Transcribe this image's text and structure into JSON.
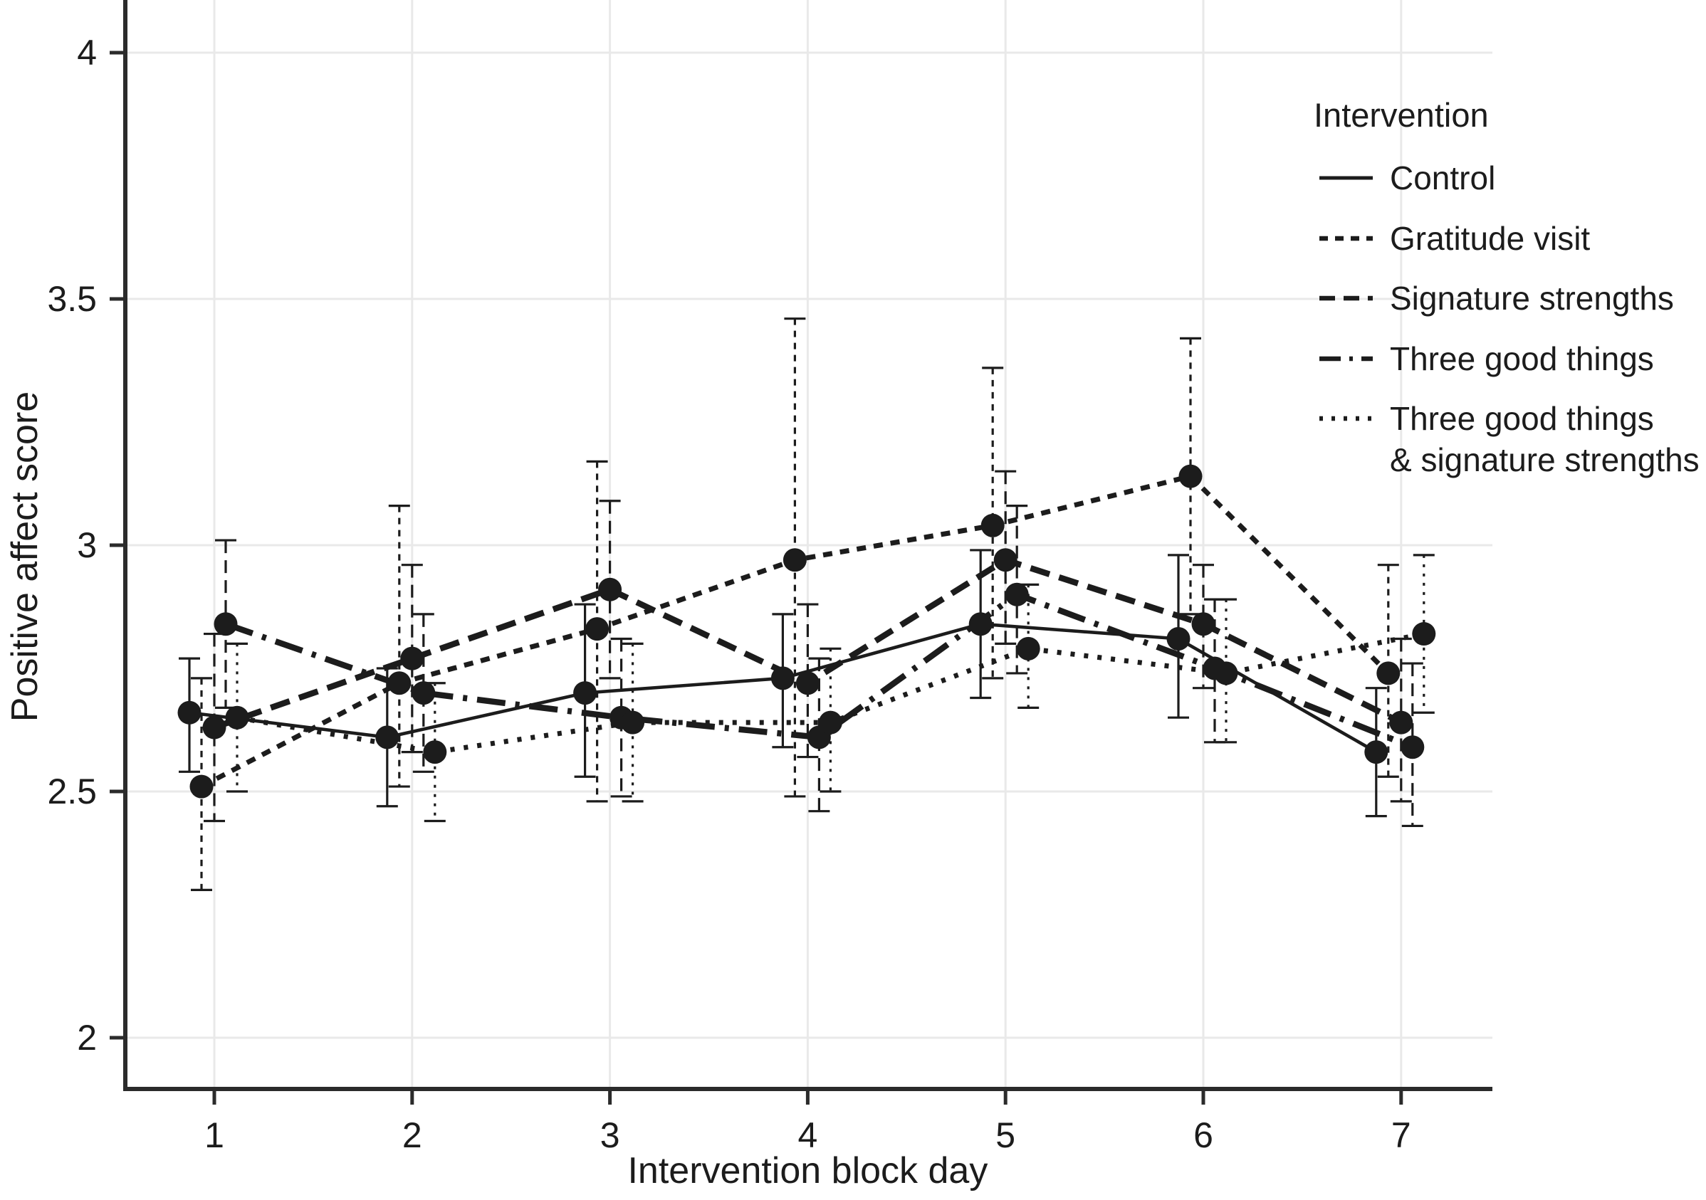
{
  "chart_data": {
    "type": "line",
    "title": "",
    "xlabel": "Intervention block day",
    "ylabel": "Positive affect score",
    "x": [
      1,
      2,
      3,
      4,
      5,
      6,
      7
    ],
    "xtick_labels": [
      "1",
      "2",
      "3",
      "4",
      "5",
      "6",
      "7"
    ],
    "yticks": [
      2,
      2.5,
      3,
      3.5,
      4
    ],
    "ytick_labels": [
      "2",
      "2.5",
      "3",
      "3.5",
      "4"
    ],
    "ylim": [
      1.88,
      4.1
    ],
    "xlim": [
      0.55,
      7.47
    ],
    "grid": "major gridlines both axes, light gray, white background",
    "legend_position": "right-top",
    "legend_title": "Intervention",
    "marker": "filled black circle",
    "error_bars": "vertical interval with caps, line style matches series",
    "series": [
      {
        "name": "Control",
        "label_lines": [
          "Control"
        ],
        "line_style": "solid",
        "values": [
          2.66,
          2.61,
          2.7,
          2.73,
          2.84,
          2.81,
          2.58
        ],
        "ci_low": [
          2.54,
          2.47,
          2.53,
          2.59,
          2.69,
          2.65,
          2.45
        ],
        "ci_high": [
          2.77,
          2.75,
          2.88,
          2.86,
          2.99,
          2.98,
          2.71
        ]
      },
      {
        "name": "Gratitude visit",
        "label_lines": [
          "Gratitude visit"
        ],
        "line_style": "short-dash",
        "values": [
          2.51,
          2.72,
          2.83,
          2.97,
          3.04,
          3.14,
          2.74
        ],
        "ci_low": [
          2.3,
          2.51,
          2.48,
          2.49,
          2.73,
          2.86,
          2.53
        ],
        "ci_high": [
          2.73,
          3.08,
          3.17,
          3.46,
          3.36,
          3.42,
          2.96
        ]
      },
      {
        "name": "Signature strengths",
        "label_lines": [
          "Signature strengths"
        ],
        "line_style": "medium-dash",
        "values": [
          2.63,
          2.77,
          2.91,
          2.72,
          2.97,
          2.84,
          2.64
        ],
        "ci_low": [
          2.44,
          2.58,
          2.73,
          2.57,
          2.8,
          2.71,
          2.48
        ],
        "ci_high": [
          2.82,
          2.96,
          3.09,
          2.88,
          3.15,
          2.96,
          2.81
        ]
      },
      {
        "name": "Three good things",
        "label_lines": [
          "Three good things"
        ],
        "line_style": "long-dash-dot",
        "values": [
          2.84,
          2.7,
          2.65,
          2.61,
          2.9,
          2.75,
          2.59
        ],
        "ci_low": [
          2.67,
          2.54,
          2.49,
          2.46,
          2.74,
          2.6,
          2.43
        ],
        "ci_high": [
          3.01,
          2.86,
          2.81,
          2.77,
          3.08,
          2.89,
          2.76
        ]
      },
      {
        "name": "Three good things & signature strengths",
        "label_lines": [
          "Three good things",
          "& signature strengths"
        ],
        "line_style": "dotted",
        "values": [
          2.65,
          2.58,
          2.64,
          2.64,
          2.79,
          2.74,
          2.82
        ],
        "ci_low": [
          2.5,
          2.44,
          2.48,
          2.5,
          2.67,
          2.6,
          2.66
        ],
        "ci_high": [
          2.8,
          2.72,
          2.8,
          2.79,
          2.92,
          2.89,
          2.98
        ]
      }
    ],
    "colors": {
      "data": "#1c1c1c",
      "axis": "#2b2b2b",
      "grid": "#e9e9e9",
      "background": "#ffffff"
    }
  }
}
